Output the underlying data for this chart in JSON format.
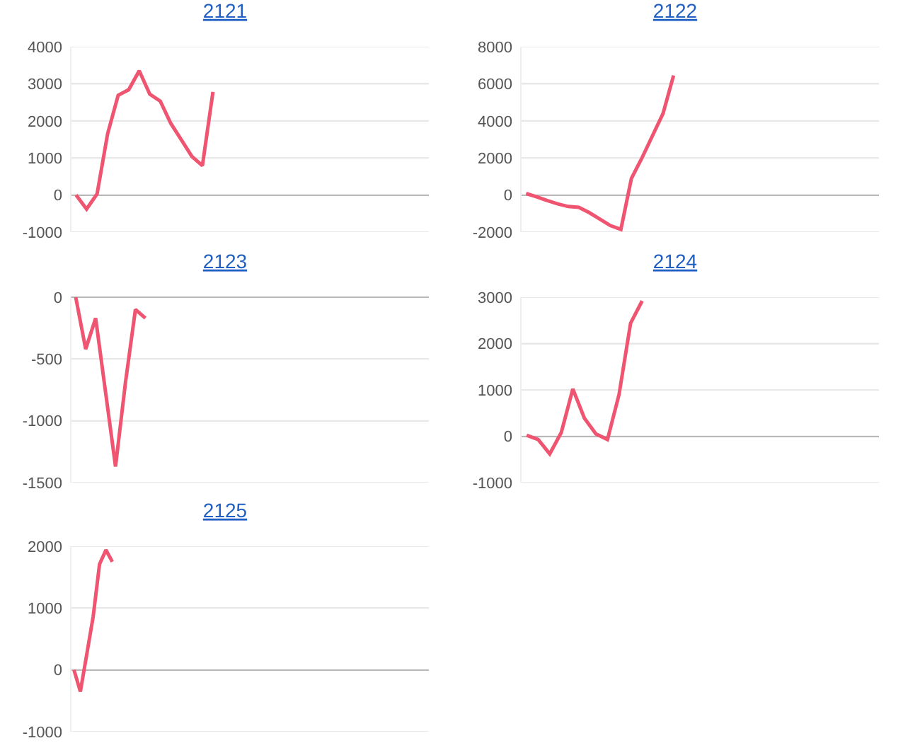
{
  "chart_data": [
    {
      "type": "line",
      "title": "2121",
      "categories": [
        null,
        null,
        null,
        null,
        null,
        null,
        null,
        null,
        null,
        null,
        null,
        null,
        null,
        null,
        null,
        null,
        null,
        null,
        null,
        null,
        null,
        null,
        null,
        null,
        null,
        null,
        null,
        null,
        null,
        null,
        null,
        null,
        null,
        null
      ],
      "values": [
        0,
        -380,
        30,
        1650,
        2690,
        2840,
        3350,
        2720,
        2530,
        1930,
        1490,
        1040,
        790,
        2780,
        null,
        null,
        null,
        null,
        null,
        null,
        null,
        null,
        null,
        null,
        null,
        null,
        null,
        null,
        null,
        null,
        null,
        null,
        null,
        null
      ],
      "color": "#ef5470",
      "ylim": [
        -1000,
        4000
      ],
      "yticks": [
        -1000,
        0,
        1000,
        2000,
        3000,
        4000
      ],
      "grid": "y",
      "tick_labels": "y"
    },
    {
      "type": "line",
      "title": "2122",
      "categories": [
        null,
        null,
        null,
        null,
        null,
        null,
        null,
        null,
        null,
        null,
        null,
        null,
        null,
        null,
        null,
        null,
        null,
        null,
        null,
        null,
        null,
        null,
        null,
        null,
        null,
        null,
        null,
        null,
        null,
        null,
        null,
        null,
        null,
        null
      ],
      "values": [
        80,
        -100,
        -300,
        -480,
        -620,
        -660,
        -950,
        -1300,
        -1650,
        -1850,
        900,
        2000,
        3200,
        4400,
        6450,
        null,
        null,
        null,
        null,
        null,
        null,
        null,
        null,
        null,
        null,
        null,
        null,
        null,
        null,
        null,
        null,
        null,
        null,
        null
      ],
      "color": "#ef5470",
      "ylim": [
        -2000,
        8000
      ],
      "yticks": [
        -2000,
        0,
        2000,
        4000,
        6000,
        8000
      ],
      "grid": "y",
      "tick_labels": "y"
    },
    {
      "type": "line",
      "title": "2123",
      "categories": [
        null,
        null,
        null,
        null,
        null,
        null,
        null,
        null,
        null,
        null,
        null,
        null,
        null,
        null,
        null,
        null,
        null,
        null,
        null,
        null,
        null,
        null,
        null,
        null,
        null,
        null,
        null,
        null,
        null,
        null,
        null,
        null,
        null,
        null,
        null,
        null
      ],
      "values": [
        0,
        -420,
        -170,
        -770,
        -1370,
        -690,
        -100,
        -170,
        null,
        null,
        null,
        null,
        null,
        null,
        null,
        null,
        null,
        null,
        null,
        null,
        null,
        null,
        null,
        null,
        null,
        null,
        null,
        null,
        null,
        null,
        null,
        null,
        null,
        null,
        null,
        null
      ],
      "color": "#ef5470",
      "ylim": [
        -1500,
        0
      ],
      "yticks": [
        -1500,
        -1000,
        -500,
        0
      ],
      "grid": "y",
      "tick_labels": "y"
    },
    {
      "type": "line",
      "title": "2124",
      "categories": [
        null,
        null,
        null,
        null,
        null,
        null,
        null,
        null,
        null,
        null,
        null,
        null,
        null,
        null,
        null,
        null,
        null,
        null,
        null,
        null,
        null,
        null,
        null,
        null,
        null,
        null,
        null,
        null,
        null,
        null,
        null
      ],
      "values": [
        20,
        -70,
        -380,
        80,
        1020,
        390,
        50,
        -70,
        900,
        2440,
        2920,
        null,
        null,
        null,
        null,
        null,
        null,
        null,
        null,
        null,
        null,
        null,
        null,
        null,
        null,
        null,
        null,
        null,
        null,
        null,
        null
      ],
      "color": "#ef5470",
      "ylim": [
        -1000,
        3000
      ],
      "yticks": [
        -1000,
        0,
        1000,
        2000,
        3000
      ],
      "grid": "y",
      "tick_labels": "y"
    },
    {
      "type": "line",
      "title": "2125",
      "categories": [
        null,
        null,
        null,
        null,
        null,
        null,
        null,
        null,
        null,
        null,
        null,
        null,
        null,
        null,
        null,
        null,
        null,
        null,
        null,
        null,
        null,
        null,
        null,
        null,
        null,
        null,
        null,
        null,
        null,
        null,
        null,
        null,
        null,
        null,
        null,
        null,
        null,
        null,
        null,
        null,
        null,
        null,
        null,
        null,
        null,
        null,
        null,
        null,
        null,
        null,
        null,
        null,
        null,
        null,
        null,
        null
      ],
      "values": [
        0,
        -350,
        250,
        860,
        1710,
        1940,
        1750,
        null,
        null,
        null,
        null,
        null,
        null,
        null,
        null,
        null,
        null,
        null,
        null,
        null,
        null,
        null,
        null,
        null,
        null,
        null,
        null,
        null,
        null,
        null,
        null,
        null,
        null,
        null,
        null,
        null,
        null,
        null,
        null,
        null,
        null,
        null,
        null,
        null,
        null,
        null,
        null,
        null,
        null,
        null,
        null,
        null,
        null,
        null,
        null,
        null
      ],
      "color": "#ef5470",
      "ylim": [
        -1000,
        2000
      ],
      "yticks": [
        -1000,
        0,
        1000,
        2000
      ],
      "grid": "y",
      "tick_labels": "y"
    }
  ]
}
